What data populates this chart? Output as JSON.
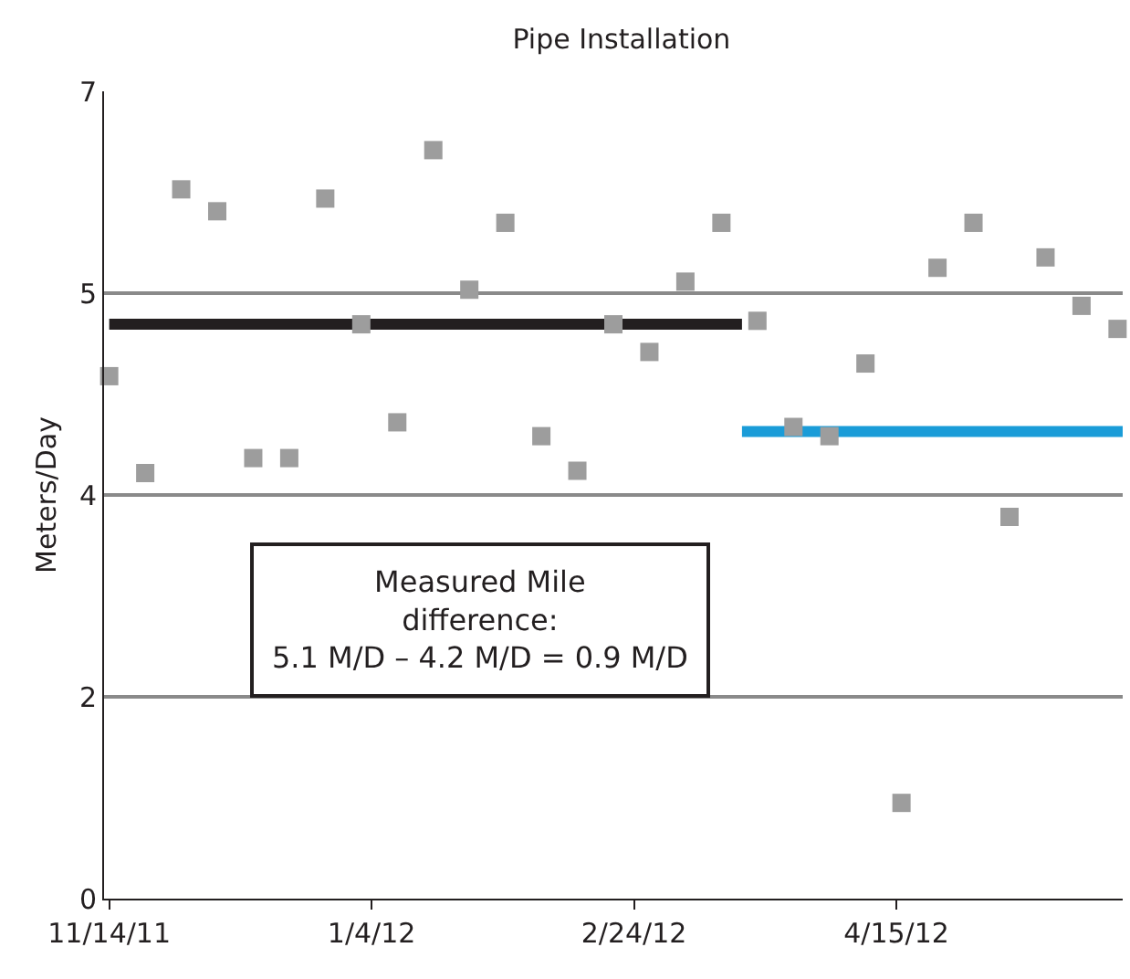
{
  "chart_data": {
    "type": "scatter",
    "title": "Pipe Installation",
    "ylabel": "Meters/Day",
    "x": [
      "2011-11-14",
      "2011-11-21",
      "2011-11-28",
      "2011-12-05",
      "2011-12-12",
      "2011-12-19",
      "2011-12-26",
      "2012-01-02",
      "2012-01-09",
      "2012-01-16",
      "2012-01-23",
      "2012-01-30",
      "2012-02-06",
      "2012-02-13",
      "2012-02-20",
      "2012-02-27",
      "2012-03-05",
      "2012-03-12",
      "2012-03-19",
      "2012-03-26",
      "2012-04-02",
      "2012-04-09",
      "2012-04-16",
      "2012-04-23",
      "2012-04-30",
      "2012-05-07",
      "2012-05-14",
      "2012-05-21",
      "2012-05-28"
    ],
    "series": [
      {
        "color": "#9d9d9d",
        "marker": "square",
        "values": [
          4.53,
          3.69,
          6.15,
          5.96,
          3.82,
          3.82,
          6.07,
          4.98,
          4.13,
          6.49,
          5.28,
          5.86,
          4.01,
          3.71,
          4.98,
          4.74,
          5.35,
          5.86,
          5.01,
          4.09,
          4.01,
          4.64,
          0.83,
          5.47,
          5.86,
          3.31,
          5.56,
          5.14,
          4.94
        ]
      },
      {
        "type": "line",
        "color": "#231f20",
        "x": [
          "2011-11-14",
          "2012-03-16"
        ],
        "values": [
          4.98,
          4.98
        ]
      },
      {
        "type": "line",
        "color": "#1a9cd8",
        "x": [
          "2012-03-16",
          "2012-05-29"
        ],
        "values": [
          4.05,
          4.05
        ]
      }
    ],
    "xlim": [
      "2011-11-13",
      "2012-05-29"
    ],
    "xticks": [
      {
        "value": "2011-11-14",
        "label": "11/14/11"
      },
      {
        "value": "2012-01-04",
        "label": "1/4/12"
      },
      {
        "value": "2012-02-24",
        "label": "2/24/12"
      },
      {
        "value": "2012-04-15",
        "label": "4/15/12"
      }
    ],
    "ylim": [
      0,
      7
    ],
    "yticks": [
      0,
      {
        "value": 1.75,
        "label": "2"
      },
      {
        "value": 3.5,
        "label": "4"
      },
      {
        "value": 5.25,
        "label": "5"
      },
      7
    ],
    "grid": "y",
    "legend": false,
    "annotations": [
      "Measured Mile\ndifference:\n5.1 M/D – 4.2 M/D = 0.9 M/D"
    ]
  }
}
